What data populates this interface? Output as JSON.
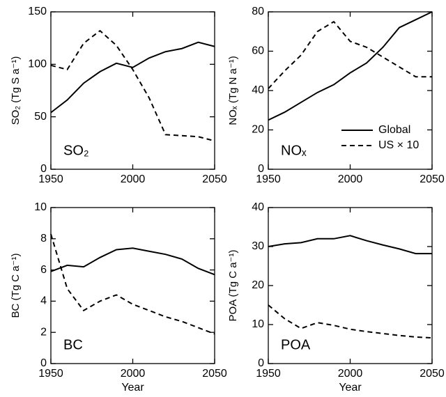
{
  "chart_data": [
    {
      "type": "line",
      "ylabel": "SO₂ (Tg S a⁻¹)",
      "panel_label": "SO₂",
      "x": [
        1950,
        1960,
        1970,
        1980,
        1990,
        2000,
        2010,
        2020,
        2030,
        2040,
        2050
      ],
      "xlim": [
        1950,
        2050
      ],
      "xticks": [
        1950,
        2000,
        2050
      ],
      "ylim": [
        0,
        150
      ],
      "yticks": [
        0,
        50,
        100,
        150
      ],
      "series": [
        {
          "color": "#000000",
          "dash": "solid",
          "values": [
            54,
            66,
            82,
            93,
            101,
            97,
            106,
            112,
            115,
            121,
            117
          ]
        },
        {
          "color": "#000000",
          "dash": "dashed",
          "values": [
            99,
            95,
            120,
            132,
            118,
            95,
            68,
            33,
            32,
            31,
            27
          ]
        }
      ]
    },
    {
      "type": "line",
      "ylabel": "NOₓ (Tg N a⁻¹)",
      "panel_label": "NOₓ",
      "legend": "lower right",
      "x": [
        1950,
        1960,
        1970,
        1980,
        1990,
        2000,
        2010,
        2020,
        2030,
        2040,
        2050
      ],
      "xlim": [
        1950,
        2050
      ],
      "xticks": [
        1950,
        2000,
        2050
      ],
      "ylim": [
        0,
        80
      ],
      "yticks": [
        0,
        20,
        40,
        60,
        80
      ],
      "series": [
        {
          "name": "Global",
          "color": "#000000",
          "dash": "solid",
          "values": [
            25,
            29,
            34,
            39,
            43,
            49,
            54,
            62,
            72,
            76,
            80
          ]
        },
        {
          "name": "US × 10",
          "color": "#000000",
          "dash": "dashed",
          "values": [
            41,
            50,
            58,
            70,
            75,
            65,
            62,
            57,
            52,
            47,
            47
          ]
        }
      ]
    },
    {
      "type": "line",
      "ylabel": "BC (Tg C a⁻¹)",
      "panel_label": "BC",
      "xlabel": "Year",
      "x": [
        1950,
        1960,
        1970,
        1980,
        1990,
        2000,
        2010,
        2020,
        2030,
        2040,
        2050
      ],
      "xlim": [
        1950,
        2050
      ],
      "xticks": [
        1950,
        2000,
        2050
      ],
      "ylim": [
        0,
        10
      ],
      "yticks": [
        0,
        2,
        4,
        6,
        8,
        10
      ],
      "series": [
        {
          "color": "#000000",
          "dash": "solid",
          "values": [
            5.9,
            6.3,
            6.2,
            6.8,
            7.3,
            7.4,
            7.2,
            7.0,
            6.7,
            6.1,
            5.7
          ]
        },
        {
          "color": "#000000",
          "dash": "dashed",
          "values": [
            8.3,
            4.8,
            3.4,
            4.0,
            4.4,
            3.8,
            3.4,
            3.0,
            2.7,
            2.3,
            1.9
          ]
        }
      ]
    },
    {
      "type": "line",
      "ylabel": "POA (Tg C a⁻¹)",
      "panel_label": "POA",
      "xlabel": "Year",
      "x": [
        1950,
        1960,
        1970,
        1980,
        1990,
        2000,
        2010,
        2020,
        2030,
        2040,
        2050
      ],
      "xlim": [
        1950,
        2050
      ],
      "xticks": [
        1950,
        2000,
        2050
      ],
      "ylim": [
        0,
        40
      ],
      "yticks": [
        0,
        10,
        20,
        30,
        40
      ],
      "series": [
        {
          "color": "#000000",
          "dash": "solid",
          "values": [
            30,
            30.7,
            31,
            32,
            32,
            32.8,
            31.5,
            30.4,
            29.4,
            28.2,
            28.2
          ]
        },
        {
          "color": "#000000",
          "dash": "dashed",
          "values": [
            15,
            11.5,
            9,
            10.5,
            9.8,
            8.8,
            8.2,
            7.7,
            7.2,
            6.8,
            6.6
          ]
        }
      ]
    }
  ]
}
